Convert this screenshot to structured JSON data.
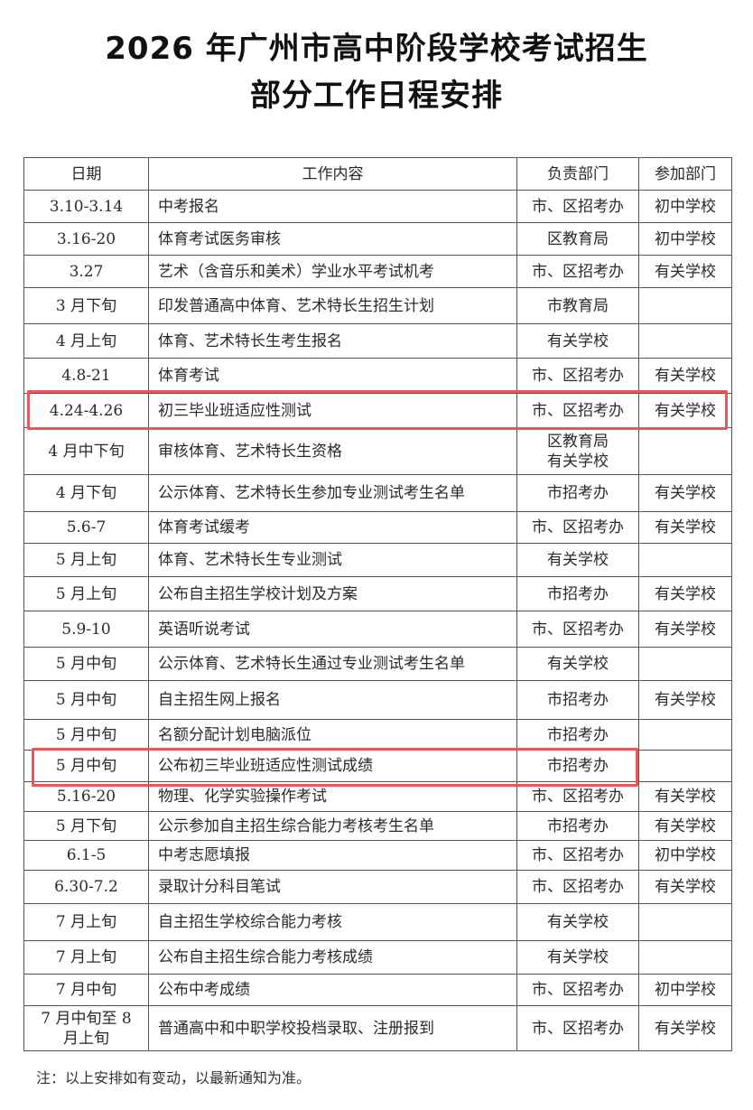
{
  "title_line1": "2026 年广州市高中阶段学校考试招生",
  "title_line2": "部分工作日程安排",
  "table": {
    "headers": [
      "日期",
      "工作内容",
      "负责部门",
      "参加部门"
    ],
    "rows": [
      [
        "3.10-3.14",
        "中考报名",
        "市、区招考办",
        "初中学校"
      ],
      [
        "3.16-20",
        "体育考试医务审核",
        "区教育局",
        "初中学校"
      ],
      [
        "3.27",
        "艺术（含音乐和美术）学业水平考试机考",
        "市、区招考办",
        "有关学校"
      ],
      [
        "3 月下旬",
        "印发普通高中体育、艺术特长生招生计划",
        "市教育局",
        ""
      ],
      [
        "4 月上旬",
        "体育、艺术特长生考生报名",
        "有关学校",
        ""
      ],
      [
        "4.8-21",
        "体育考试",
        "市、区招考办",
        "有关学校"
      ],
      [
        "4.24-4.26",
        "初三毕业班适应性测试",
        "市、区招考办",
        "有关学校"
      ],
      [
        "4 月中下旬",
        "审核体育、艺术特长生资格",
        "区教育局\n有关学校",
        ""
      ],
      [
        "4 月下旬",
        "公示体育、艺术特长生参加专业测试考生名单",
        "市招考办",
        "有关学校"
      ],
      [
        "5.6-7",
        "体育考试缓考",
        "市、区招考办",
        "有关学校"
      ],
      [
        "5 月上旬",
        "体育、艺术特长生专业测试",
        "有关学校",
        ""
      ],
      [
        "5 月上旬",
        "公布自主招生学校计划及方案",
        "市招考办",
        "有关学校"
      ],
      [
        "5.9-10",
        "英语听说考试",
        "市、区招考办",
        "有关学校"
      ],
      [
        "5 月中旬",
        "公示体育、艺术特长生通过专业测试考生名单",
        "有关学校",
        ""
      ],
      [
        "5 月中旬",
        "自主招生网上报名",
        "市招考办",
        "有关学校"
      ],
      [
        "5 月中旬",
        "名额分配计划电脑派位",
        "市招考办",
        ""
      ],
      [
        "5 月中旬",
        "公布初三毕业班适应性测试成绩",
        "市招考办",
        ""
      ],
      [
        "5.16-20",
        "物理、化学实验操作考试",
        "市、区招考办",
        "有关学校"
      ],
      [
        "5 月下旬",
        "公示参加自主招生综合能力考核考生名单",
        "市招考办",
        "有关学校"
      ],
      [
        "6.1-5",
        "中考志愿填报",
        "市、区招考办",
        "初中学校"
      ],
      [
        "6.30-7.2",
        "录取计分科目笔试",
        "市、区招考办",
        "有关学校"
      ],
      [
        "7 月上旬",
        "自主招生学校综合能力考核",
        "有关学校",
        ""
      ],
      [
        "7 月上旬",
        "公布自主招生综合能力考核成绩",
        "有关学校",
        ""
      ],
      [
        "7 月中旬",
        "公布中考成绩",
        "市、区招考办",
        "初中学校"
      ],
      [
        "7 月中旬至 8\n月上旬",
        "普通高中和中职学校投档录取、注册报到",
        "市、区招考办",
        "有关学校"
      ]
    ],
    "highlighted_rows": [
      7,
      17
    ],
    "highlight_color": "#e8565a"
  },
  "note": "注：以上安排如有变动，以最新通知为准。"
}
